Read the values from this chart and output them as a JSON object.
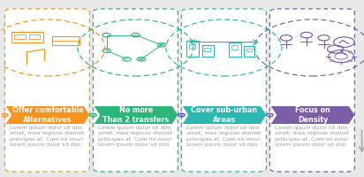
{
  "background_color": "#e8e8e8",
  "card_bg": "#ffffff",
  "card_border_colors": [
    "#e8a020",
    "#2db57a",
    "#2ab8b0",
    "#7b5ea7"
  ],
  "arrow_colors": [
    "#f7941d",
    "#2db57a",
    "#2ab8b0",
    "#7b5ea7"
  ],
  "icon_colors": [
    "#f7941d",
    "#2db57a",
    "#2ab8b0",
    "#7b5ea7"
  ],
  "dot_colors": [
    "#f7941d",
    "#2db57a",
    "#5b4fc2",
    "#7b5ea7"
  ],
  "titles": [
    "Offer comfortable\nAlternatives",
    "No more\nThan 2 transfers",
    "Cover sub-urban\nAreas",
    "Focus on\nDensity"
  ],
  "body_lines": [
    "Lorem ipsum dolor sit dim",
    "amet, mea regione diamet",
    "principes at. Cum no movi",
    "lorem ipsum dolor sit dim"
  ],
  "num_cards": 4,
  "title_fontsize": 5.8,
  "body_fontsize": 4.5
}
